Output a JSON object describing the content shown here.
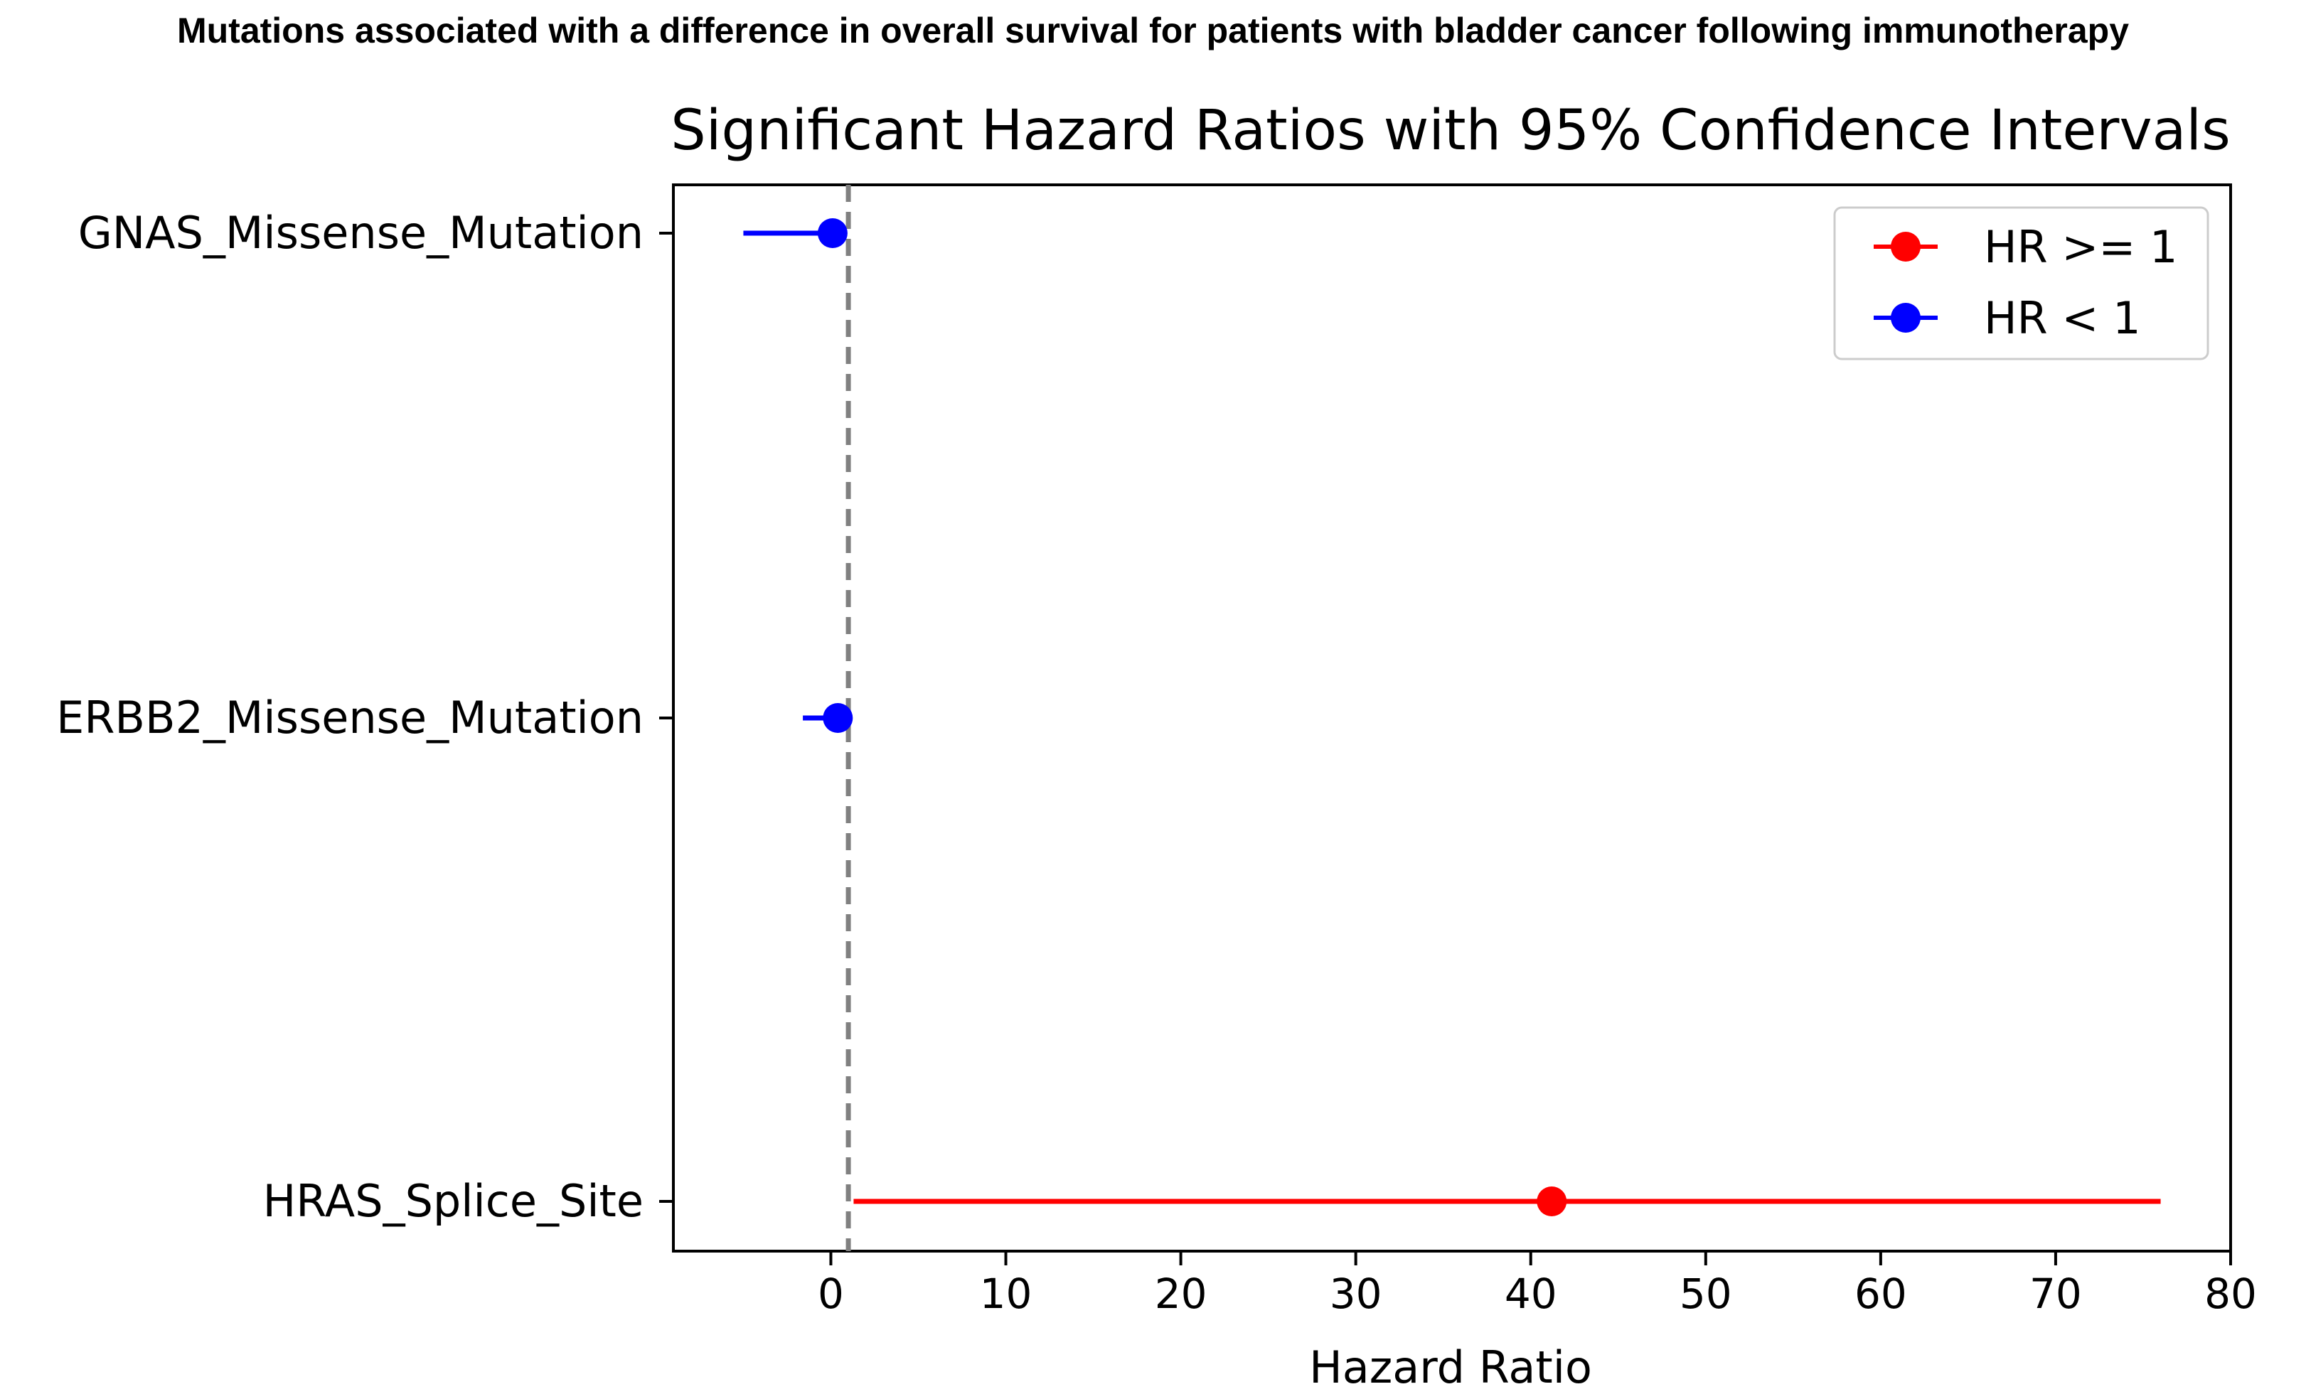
{
  "figure": {
    "title": "Mutations associated with a difference in overall survival for patients with bladder cancer following immunotherapy"
  },
  "chart_data": {
    "type": "scatter",
    "title": "Significant Hazard Ratios with 95% Confidence Intervals",
    "xlabel": "Hazard Ratio",
    "ylabel": "",
    "xlim": [
      -9,
      80
    ],
    "xticks": [
      0,
      10,
      20,
      30,
      40,
      50,
      60,
      70,
      80
    ],
    "categories": [
      "GNAS_Missense_Mutation",
      "ERBB2_Missense_Mutation",
      "HRAS_Splice_Site"
    ],
    "points": [
      {
        "label": "GNAS_Missense_Mutation",
        "hr": 0.1,
        "ci_low": -5,
        "ci_high": 0.1,
        "group": "HR < 1"
      },
      {
        "label": "ERBB2_Missense_Mutation",
        "hr": 0.4,
        "ci_low": -1.6,
        "ci_high": 0.4,
        "group": "HR < 1"
      },
      {
        "label": "HRAS_Splice_Site",
        "hr": 41.2,
        "ci_low": 1.3,
        "ci_high": 76.0,
        "group": "HR >= 1"
      }
    ],
    "reference_line": {
      "x": 1,
      "style": "dashed"
    },
    "legend": {
      "position": "top-right",
      "entries": [
        {
          "label": "HR >= 1",
          "color": "#ff0000"
        },
        {
          "label": "HR < 1",
          "color": "#0000ff"
        }
      ]
    },
    "colors": {
      "hr_high": "#ff0000",
      "hr_low": "#0000ff",
      "reference": "#808080"
    },
    "grid": false
  }
}
